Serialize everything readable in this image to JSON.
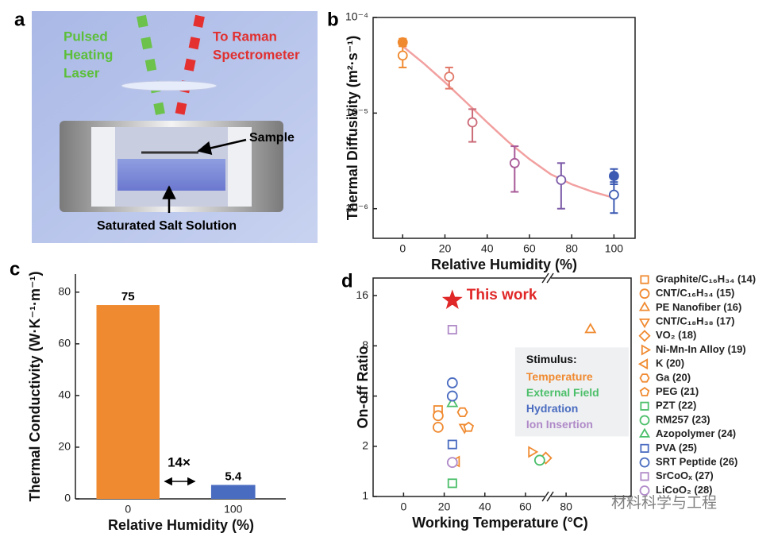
{
  "diagram": {
    "panel": "a",
    "laser_label": [
      "Pulsed",
      "Heating",
      "Laser"
    ],
    "raman_label": [
      "To Raman",
      "Spectrometer"
    ],
    "sample_label": "Sample",
    "solution_label": "Saturated Salt Solution"
  },
  "watermark": "材料科学与工程",
  "chart_data": [
    {
      "type": "scatter",
      "panel": "b",
      "xlabel": "Relative Humidity (%)",
      "ylabel": "Thermal Diffusivity (m²·s⁻¹)",
      "xlim": [
        -14,
        110
      ],
      "xticks": [
        0,
        20,
        40,
        60,
        80,
        100
      ],
      "ylim": [
        4.9e-07,
        0.0001
      ],
      "yscale": "log",
      "yticks": [
        {
          "value": 1e-06,
          "label": "10⁻⁶"
        },
        {
          "value": 1e-05,
          "label": "10⁻⁵"
        },
        {
          "value": 0.0001,
          "label": "10⁻⁴"
        }
      ],
      "series": [
        {
          "filled": false,
          "x": [
            0,
            22,
            33,
            53,
            75,
            100
          ],
          "values": [
            4e-05,
            2.4e-05,
            8e-06,
            3e-06,
            2e-06,
            1.4e-06
          ],
          "yerr": [
            1e-05,
            6e-06,
            3e-06,
            1.5e-06,
            1e-06,
            5e-07
          ],
          "colors": [
            "#f08a30",
            "#e07868",
            "#cc6a78",
            "#a85a98",
            "#7c5aa8",
            "#3c5ab2"
          ]
        },
        {
          "filled": true,
          "x": [
            0,
            100
          ],
          "values": [
            5.5e-05,
            2.2e-06
          ],
          "yerr": [
            5e-06,
            4e-07
          ],
          "colors": [
            "#f08a30",
            "#3c5ab2"
          ]
        }
      ],
      "fit": {
        "color": "#f2a0a0",
        "x": [
          0,
          10,
          20,
          30,
          40,
          50,
          60,
          70,
          80,
          90,
          100
        ],
        "values": [
          5e-05,
          3.3e-05,
          2.1e-05,
          1.3e-05,
          8e-06,
          5e-06,
          3.3e-06,
          2.3e-06,
          1.8e-06,
          1.5e-06,
          1.3e-06
        ]
      }
    },
    {
      "type": "bar",
      "panel": "c",
      "xlabel": "Relative Humidity (%)",
      "ylabel": "Thermal Conductivity (W·K⁻¹·m⁻¹)",
      "categories": [
        "0",
        "100"
      ],
      "values": [
        75,
        5.4
      ],
      "colors": [
        "#f08a30",
        "#4a6cc0"
      ],
      "ylim": [
        0,
        87
      ],
      "yticks": [
        0,
        20,
        40,
        60,
        80
      ],
      "annotation": "14×"
    },
    {
      "type": "scatter",
      "panel": "d",
      "xlabel": "Working Temperature (°C)",
      "ylabel": "On-off Ratio",
      "xlim": [
        -15,
        112
      ],
      "xticks": [
        0,
        20,
        40,
        60,
        80
      ],
      "ylim": [
        1,
        20.4
      ],
      "yscale": "log",
      "yticks": [
        1,
        2,
        4,
        8,
        16
      ],
      "highlight": {
        "name": "This work",
        "color": "#e02828",
        "marker": "star",
        "x": [
          24
        ],
        "values": [
          15
        ]
      },
      "series": [
        {
          "name": "Graphite/C₁₆H₃₄ (14)",
          "color": "#f08a30",
          "marker": "square",
          "x": [
            17
          ],
          "values": [
            3.3
          ]
        },
        {
          "name": "CNT/C₁₆H₃₄ (15)",
          "color": "#f08a30",
          "marker": "circle",
          "x": [
            17,
            17
          ],
          "values": [
            3.05,
            2.6
          ]
        },
        {
          "name": "PE Nanofiber (16)",
          "color": "#f08a30",
          "marker": "triangle-up",
          "x": [
            92
          ],
          "values": [
            10
          ]
        },
        {
          "name": "CNT/C₁₈H₃₈ (17)",
          "color": "#f08a30",
          "marker": "triangle-down",
          "x": [
            30
          ],
          "values": [
            2.6
          ]
        },
        {
          "name": "VO₂ (18)",
          "color": "#f08a30",
          "marker": "diamond",
          "x": [
            70
          ],
          "values": [
            1.7
          ]
        },
        {
          "name": "Ni-Mn-In Alloy (19)",
          "color": "#f08a30",
          "marker": "triangle-right",
          "x": [
            63
          ],
          "values": [
            1.85
          ]
        },
        {
          "name": "K (20)",
          "color": "#f08a30",
          "marker": "triangle-left",
          "x": [
            26
          ],
          "values": [
            1.62
          ]
        },
        {
          "name": "Ga (20)",
          "color": "#f08a30",
          "marker": "hexagon",
          "x": [
            29
          ],
          "values": [
            3.2
          ]
        },
        {
          "name": "PEG (21)",
          "color": "#f08a30",
          "marker": "pentagon",
          "x": [
            32
          ],
          "values": [
            2.6
          ]
        },
        {
          "name": "PZT (22)",
          "color": "#4cbf6a",
          "marker": "square",
          "x": [
            24
          ],
          "values": [
            1.2
          ]
        },
        {
          "name": "RM257 (23)",
          "color": "#4cbf6a",
          "marker": "circle",
          "x": [
            67
          ],
          "values": [
            1.65
          ]
        },
        {
          "name": "Azopolymer (24)",
          "color": "#4cbf6a",
          "marker": "triangle-up",
          "x": [
            24
          ],
          "values": [
            3.6
          ]
        },
        {
          "name": "PVA (25)",
          "color": "#4a6cc0",
          "marker": "square",
          "x": [
            24
          ],
          "values": [
            2.05
          ]
        },
        {
          "name": "SRT Peptide (26)",
          "color": "#4a6cc0",
          "marker": "circle",
          "x": [
            24,
            24
          ],
          "values": [
            4.8,
            4.0
          ]
        },
        {
          "name": "SrCoOₓ (27)",
          "color": "#b08ac8",
          "marker": "square",
          "x": [
            24
          ],
          "values": [
            10
          ]
        },
        {
          "name": "LiCoO₂ (28)",
          "color": "#b08ac8",
          "marker": "circle",
          "x": [
            24
          ],
          "values": [
            1.6
          ]
        }
      ],
      "stimulus": {
        "title": "Stimulus:",
        "items": [
          {
            "name": "Temperature",
            "color": "#f08a30"
          },
          {
            "name": "External Field",
            "color": "#4cbf6a"
          },
          {
            "name": "Hydration",
            "color": "#4a6cc0"
          },
          {
            "name": "Ion Insertion",
            "color": "#b08ac8"
          }
        ]
      }
    }
  ]
}
